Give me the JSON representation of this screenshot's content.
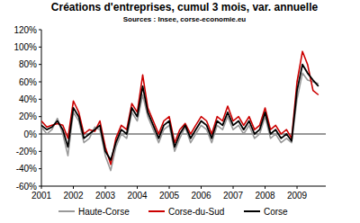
{
  "chart_data": {
    "type": "line",
    "title": "Créations d'entreprises, cumul 3 mois, var. annuelle",
    "subtitle": "Sources : Insee, corse-economie.eu",
    "x": [
      2001,
      2001.17,
      2001.33,
      2001.5,
      2001.67,
      2001.83,
      2002,
      2002.17,
      2002.33,
      2002.5,
      2002.67,
      2002.83,
      2003,
      2003.17,
      2003.33,
      2003.5,
      2003.67,
      2003.83,
      2004,
      2004.17,
      2004.33,
      2004.5,
      2004.67,
      2004.83,
      2005,
      2005.17,
      2005.33,
      2005.5,
      2005.67,
      2005.83,
      2006,
      2006.17,
      2006.33,
      2006.5,
      2006.67,
      2006.83,
      2007,
      2007.17,
      2007.33,
      2007.5,
      2007.67,
      2007.83,
      2008,
      2008.17,
      2008.33,
      2008.5,
      2008.67,
      2008.83,
      2009,
      2009.17,
      2009.33,
      2009.5,
      2009.67
    ],
    "series": [
      {
        "name": "Haute-Corse",
        "color": "#999999",
        "values": [
          8,
          0,
          5,
          18,
          0,
          -25,
          25,
          15,
          -10,
          -5,
          8,
          5,
          -25,
          -42,
          -15,
          0,
          -5,
          25,
          15,
          45,
          20,
          5,
          -10,
          5,
          10,
          -20,
          -5,
          8,
          -10,
          0,
          10,
          5,
          -10,
          10,
          5,
          20,
          5,
          10,
          0,
          10,
          -5,
          0,
          20,
          -5,
          0,
          -10,
          -5,
          -10,
          40,
          70,
          62,
          60,
          58
        ]
      },
      {
        "name": "Corse-du-Sud",
        "color": "#cc0000",
        "values": [
          15,
          8,
          10,
          12,
          10,
          -5,
          38,
          25,
          0,
          5,
          3,
          15,
          -15,
          -35,
          -5,
          10,
          5,
          35,
          25,
          68,
          30,
          15,
          0,
          15,
          20,
          -10,
          5,
          12,
          0,
          10,
          20,
          15,
          0,
          20,
          15,
          32,
          15,
          20,
          10,
          20,
          5,
          10,
          30,
          5,
          10,
          0,
          5,
          -5,
          60,
          95,
          80,
          50,
          45
        ]
      },
      {
        "name": "Corse",
        "color": "#000000",
        "values": [
          10,
          5,
          8,
          15,
          5,
          -15,
          30,
          20,
          -5,
          0,
          5,
          10,
          -20,
          -30,
          -10,
          5,
          0,
          30,
          20,
          55,
          25,
          10,
          -5,
          10,
          15,
          -15,
          0,
          10,
          -5,
          5,
          15,
          10,
          -5,
          15,
          10,
          25,
          10,
          15,
          5,
          15,
          0,
          5,
          25,
          0,
          5,
          -5,
          0,
          -8,
          50,
          80,
          70,
          62,
          55
        ]
      }
    ],
    "xlim": [
      2001,
      2009.9
    ],
    "xticks": [
      2001,
      2002,
      2003,
      2004,
      2005,
      2006,
      2007,
      2008,
      2009
    ],
    "ylim": [
      -60,
      120
    ],
    "yticks": [
      {
        "value": -60,
        "label": "-60%"
      },
      {
        "value": -40,
        "label": "-40%"
      },
      {
        "value": -20,
        "label": "-20%"
      },
      {
        "value": 0,
        "label": "0%"
      },
      {
        "value": 20,
        "label": "20%"
      },
      {
        "value": 40,
        "label": "40%"
      },
      {
        "value": 60,
        "label": "60%"
      },
      {
        "value": 80,
        "label": "80%"
      },
      {
        "value": 100,
        "label": "100%"
      },
      {
        "value": 120,
        "label": "120%"
      }
    ],
    "grid": false,
    "legend": "bottom"
  }
}
